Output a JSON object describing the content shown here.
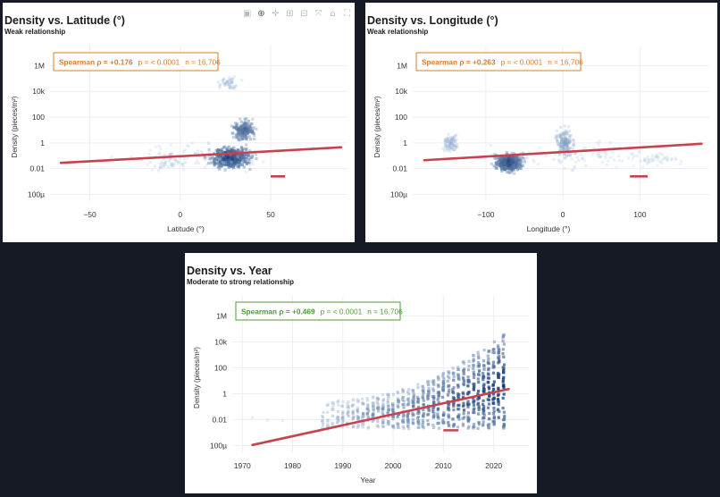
{
  "modebar": {
    "icons": [
      "camera-icon",
      "zoom-icon",
      "pan-icon",
      "zoom-in-icon",
      "zoom-out-icon",
      "autoscale-icon",
      "reset-axes-icon",
      "fullscreen-icon"
    ]
  },
  "colors": {
    "trend": "#c7424f",
    "stat_weak": "#d97c26",
    "stat_strong": "#4f9a37",
    "density_low": "#c6dbef",
    "density_high": "#08306b"
  },
  "chart_data": [
    {
      "type": "scatter",
      "title": "Density vs. Latitude (°)",
      "subtitle": "Weak relationship",
      "xlabel": "Latitude (°)",
      "ylabel": "Density (pieces/m²)",
      "y_scale": "log",
      "xlim": [
        -72,
        92
      ],
      "ylim": [
        3e-05,
        10000000
      ],
      "x_ticks": [
        -50,
        0,
        50
      ],
      "x_tick_labels": [
        "−50",
        "0",
        "50"
      ],
      "y_ticks": [
        0.0001,
        0.01,
        1,
        100,
        10000,
        1000000
      ],
      "y_tick_labels": [
        "100µ",
        "0.01",
        "1",
        "100",
        "10k",
        "1M"
      ],
      "grid": true,
      "stats": {
        "text_main": "Spearman ρ = +0.176",
        "text_p": "p = < 0.0001",
        "text_n": "n = 16,706",
        "strength": "weak"
      },
      "trend_line": {
        "x": [
          -66,
          89
        ],
        "y": [
          0.028,
          0.45
        ]
      },
      "short_marker": {
        "x": [
          50,
          58
        ],
        "y": [
          0.0025,
          0.0025
        ]
      },
      "clusters": [
        {
          "x": [
            10,
            45
          ],
          "y": [
            0.003,
            1.5
          ],
          "n": 420,
          "weight": 1.0
        },
        {
          "x": [
            25,
            45
          ],
          "y": [
            0.5,
            200
          ],
          "n": 160,
          "weight": 0.8
        },
        {
          "x": [
            18,
            35
          ],
          "y": [
            5000,
            300000
          ],
          "n": 40,
          "weight": 0.25
        },
        {
          "x": [
            -60,
            80
          ],
          "y": [
            0.002,
            5
          ],
          "n": 90,
          "weight": 0.12
        },
        {
          "x": [
            -25,
            10
          ],
          "y": [
            0.002,
            1
          ],
          "n": 40,
          "weight": 0.18
        }
      ]
    },
    {
      "type": "scatter",
      "title": "Density vs. Longitude (°)",
      "subtitle": "Weak relationship",
      "xlabel": "Longitude (°)",
      "ylabel": "Density (pieces/m²)",
      "y_scale": "log",
      "xlim": [
        -195,
        190
      ],
      "ylim": [
        3e-05,
        10000000
      ],
      "x_ticks": [
        -100,
        0,
        100
      ],
      "x_tick_labels": [
        "−100",
        "0",
        "100"
      ],
      "y_ticks": [
        0.0001,
        0.01,
        1,
        100,
        10000,
        1000000
      ],
      "y_tick_labels": [
        "100µ",
        "0.01",
        "1",
        "100",
        "10k",
        "1M"
      ],
      "grid": true,
      "stats": {
        "text_main": "Spearman ρ = +0.263",
        "text_p": "p = < 0.0001",
        "text_n": "n = 16,706",
        "strength": "weak"
      },
      "trend_line": {
        "x": [
          -180,
          180
        ],
        "y": [
          0.045,
          0.85
        ]
      },
      "short_marker": {
        "x": [
          87,
          110
        ],
        "y": [
          0.0025,
          0.0025
        ]
      },
      "clusters": [
        {
          "x": [
            -95,
            -45
          ],
          "y": [
            0.003,
            0.3
          ],
          "n": 380,
          "weight": 1.0
        },
        {
          "x": [
            -160,
            -130
          ],
          "y": [
            0.1,
            10
          ],
          "n": 70,
          "weight": 0.3
        },
        {
          "x": [
            -15,
            20
          ],
          "y": [
            0.02,
            50
          ],
          "n": 120,
          "weight": 0.4
        },
        {
          "x": [
            -120,
            170
          ],
          "y": [
            0.002,
            5
          ],
          "n": 90,
          "weight": 0.12
        },
        {
          "x": [
            60,
            180
          ],
          "y": [
            0.01,
            0.3
          ],
          "n": 40,
          "weight": 0.12
        }
      ]
    },
    {
      "type": "scatter",
      "title": "Density vs. Year",
      "subtitle": "Moderate to strong relationship",
      "xlabel": "Year",
      "ylabel": "Density (pieces/m²)",
      "y_scale": "log",
      "xlim": [
        1968,
        2027
      ],
      "ylim": [
        3e-05,
        10000000
      ],
      "x_ticks": [
        1970,
        1980,
        1990,
        2000,
        2010,
        2020
      ],
      "x_tick_labels": [
        "1970",
        "1980",
        "1990",
        "2000",
        "2010",
        "2020"
      ],
      "y_ticks": [
        0.0001,
        0.01,
        1,
        100,
        10000,
        1000000
      ],
      "y_tick_labels": [
        "100µ",
        "0.01",
        "1",
        "100",
        "10k",
        "1M"
      ],
      "grid": true,
      "stats": {
        "text_main": "Spearman ρ = +0.469",
        "text_p": "p = < 0.0001",
        "text_n": "n = 16,706",
        "strength": "strong"
      },
      "trend_line": {
        "x": [
          1972,
          2023
        ],
        "y": [
          0.00011,
          2.3
        ]
      },
      "short_marker": {
        "x": [
          2010,
          2013
        ],
        "y": [
          0.0015,
          0.0015
        ]
      },
      "year_columns": {
        "from": 1986,
        "to": 2022,
        "y_low": 0.002,
        "y_high_base": 0.3,
        "y_high_end": 50000
      }
    }
  ]
}
